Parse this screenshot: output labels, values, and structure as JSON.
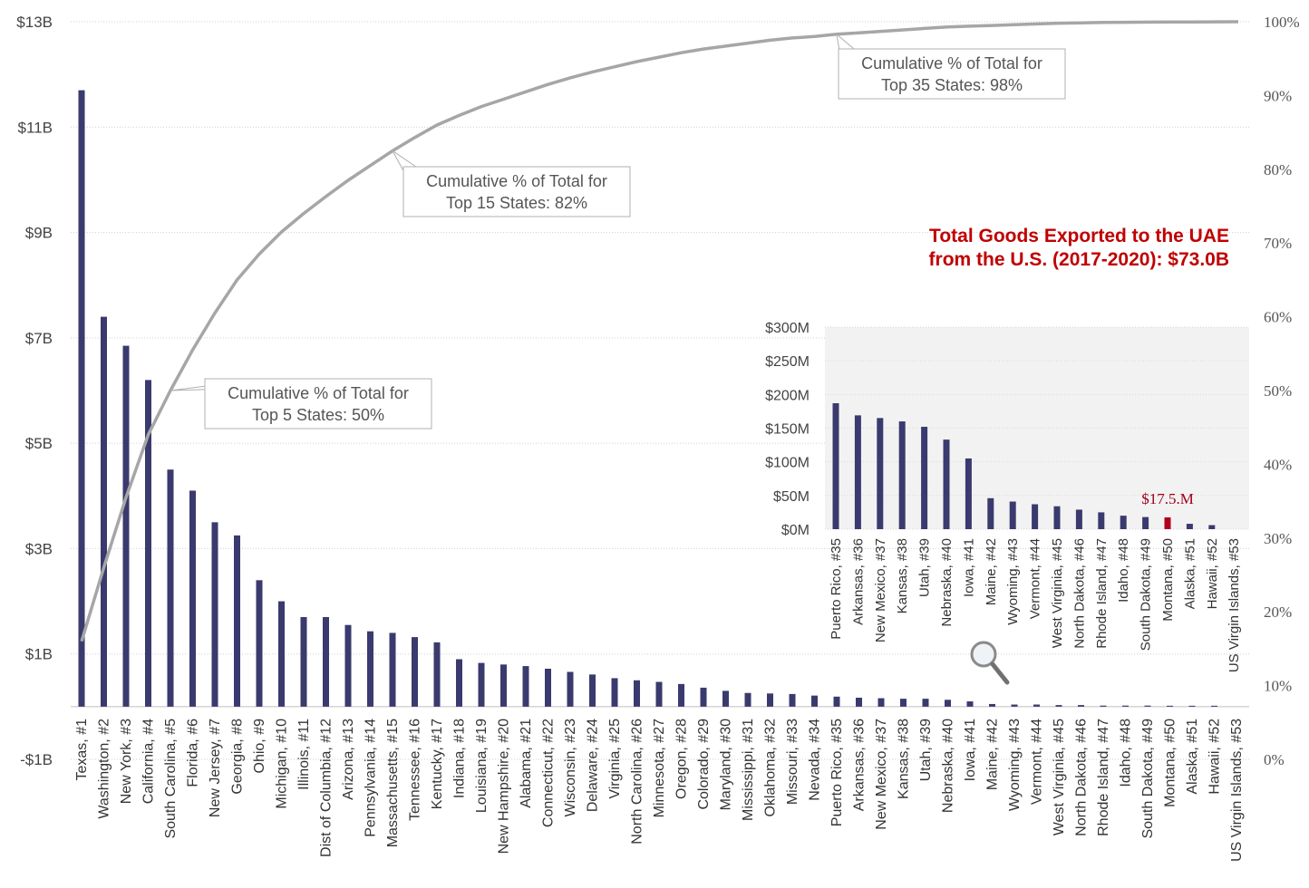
{
  "chart_data": [
    {
      "type": "bar",
      "title": "",
      "xlabel": "",
      "ylabel": "",
      "ylim": [
        -1,
        13
      ],
      "y_ticks": [
        "$13B",
        "$11B",
        "$9B",
        "$7B",
        "$5B",
        "$3B",
        "$1B",
        "-$1B"
      ],
      "y_tick_values": [
        13,
        11,
        9,
        7,
        5,
        3,
        1,
        -1
      ],
      "y2_ticks": [
        "100%",
        "90%",
        "80%",
        "70%",
        "60%",
        "50%",
        "40%",
        "30%",
        "20%",
        "10%",
        "0%"
      ],
      "y2_tick_values": [
        100,
        90,
        80,
        70,
        60,
        50,
        40,
        30,
        20,
        10,
        0
      ],
      "grid": true,
      "bar_color": "#3a3a6e",
      "line_color": "#a6a6a6",
      "categories": [
        "Texas, #1",
        "Washington, #2",
        "New York, #3",
        "California, #4",
        "South Carolina, #5",
        "Florida, #6",
        "New Jersey, #7",
        "Georgia, #8",
        "Ohio, #9",
        "Michigan, #10",
        "Illinois, #11",
        "Dist of Columbia, #12",
        "Arizona, #13",
        "Pennsylvania, #14",
        "Massachusetts, #15",
        "Tennessee, #16",
        "Kentucky, #17",
        "Indiana, #18",
        "Louisiana, #19",
        "New Hampshire, #20",
        "Alabama, #21",
        "Connecticut, #22",
        "Wisconsin, #23",
        "Delaware, #24",
        "Virginia, #25",
        "North Carolina, #26",
        "Minnesota, #27",
        "Oregon, #28",
        "Colorado, #29",
        "Maryland, #30",
        "Mississippi, #31",
        "Oklahoma, #32",
        "Missouri, #33",
        "Nevada, #34",
        "Puerto Rico, #35",
        "Arkansas, #36",
        "New Mexico, #37",
        "Kansas, #38",
        "Utah, #39",
        "Nebraska, #40",
        "Iowa, #41",
        "Maine, #42",
        "Wyoming, #43",
        "Vermont, #44",
        "West Virginia, #45",
        "North Dakota, #46",
        "Rhode Island, #47",
        "Idaho, #48",
        "South Dakota, #49",
        "Montana, #50",
        "Alaska, #51",
        "Hawaii, #52",
        "US Virgin Islands, #53"
      ],
      "series": [
        {
          "type": "bar",
          "values": [
            11.7,
            7.4,
            6.85,
            6.2,
            4.5,
            4.1,
            3.5,
            3.25,
            2.4,
            2.0,
            1.7,
            1.7,
            1.55,
            1.43,
            1.4,
            1.32,
            1.22,
            0.9,
            0.83,
            0.8,
            0.77,
            0.72,
            0.66,
            0.61,
            0.54,
            0.5,
            0.47,
            0.43,
            0.36,
            0.3,
            0.26,
            0.25,
            0.24,
            0.21,
            0.19,
            0.17,
            0.16,
            0.15,
            0.15,
            0.13,
            0.1,
            0.05,
            0.04,
            0.04,
            0.03,
            0.03,
            0.02,
            0.02,
            0.02,
            0.0175,
            0.01,
            0.006,
            0.0
          ]
        },
        {
          "type": "line",
          "axis": "y2",
          "values": [
            16,
            26,
            35.5,
            44,
            50,
            55.5,
            60.5,
            65,
            68.5,
            71.5,
            74,
            76.3,
            78.5,
            80.5,
            82.5,
            84.3,
            86,
            87.3,
            88.5,
            89.5,
            90.5,
            91.5,
            92.4,
            93.2,
            93.9,
            94.6,
            95.2,
            95.8,
            96.3,
            96.7,
            97.1,
            97.5,
            97.8,
            98,
            98.3,
            98.5,
            98.7,
            98.9,
            99.1,
            99.3,
            99.4,
            99.5,
            99.6,
            99.7,
            99.8,
            99.85,
            99.9,
            99.93,
            99.95,
            99.97,
            99.98,
            99.99,
            100
          ]
        }
      ],
      "annotations": [
        {
          "text_lines": [
            "Cumulative % of Total for",
            "Top 5 States: 50%"
          ],
          "index": 4
        },
        {
          "text_lines": [
            "Cumulative % of Total for",
            "Top 15 States: 82%"
          ],
          "index": 14
        },
        {
          "text_lines": [
            "Cumulative % of Total for",
            "Top 35 States: 98%"
          ],
          "index": 34
        }
      ],
      "headline": [
        "Total Goods Exported to the UAE",
        "from the U.S. (2017-2020): $73.0B"
      ]
    },
    {
      "type": "bar",
      "title": "",
      "ylim": [
        0,
        300
      ],
      "y_ticks": [
        "$300M",
        "$250M",
        "$200M",
        "$150M",
        "$100M",
        "$50M",
        "$0M"
      ],
      "y_tick_values": [
        300,
        250,
        200,
        150,
        100,
        50,
        0
      ],
      "background": "#f2f2f2",
      "bar_color": "#3a3a6e",
      "highlight_color": "#b0001e",
      "highlight_index": 15,
      "callout": "$17.5.M",
      "categories": [
        "Puerto Rico, #35",
        "Arkansas, #36",
        "New Mexico, #37",
        "Kansas, #38",
        "Utah, #39",
        "Nebraska, #40",
        "Iowa, #41",
        "Maine, #42",
        "Wyoming, #43",
        "Vermont, #44",
        "West Virginia, #45",
        "North Dakota, #46",
        "Rhode Island, #47",
        "Idaho, #48",
        "South Dakota, #49",
        "Montana, #50",
        "Alaska, #51",
        "Hawaii, #52",
        "US Virgin Islands, #53"
      ],
      "values": [
        187,
        169,
        165,
        160,
        152,
        133,
        105,
        46,
        41,
        37,
        34,
        29,
        25,
        20,
        18,
        17.5,
        8,
        6,
        0
      ]
    }
  ],
  "icons": {
    "magnifier": "magnifying-glass-icon"
  }
}
